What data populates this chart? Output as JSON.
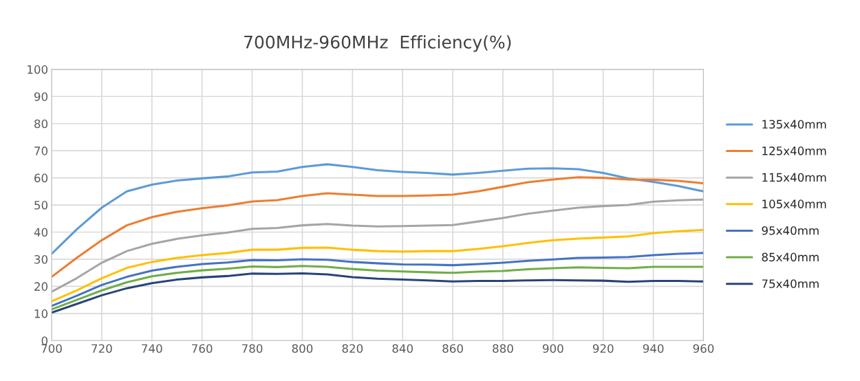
{
  "chart_data": {
    "type": "line",
    "title": "700MHz-960MHz  Efficiency(%)",
    "x": [
      700,
      710,
      720,
      730,
      740,
      750,
      760,
      770,
      780,
      790,
      800,
      810,
      820,
      830,
      840,
      850,
      860,
      870,
      880,
      890,
      900,
      910,
      920,
      930,
      940,
      950,
      960
    ],
    "series": [
      {
        "name": "135x40mm",
        "color": "#5b9bd5",
        "values": [
          32,
          41,
          49,
          55,
          57.5,
          59,
          59.8,
          60.5,
          62,
          62.3,
          64,
          65,
          64,
          62.8,
          62.2,
          61.8,
          61.2,
          61.8,
          62.6,
          63.4,
          63.5,
          63.2,
          61.8,
          59.8,
          58.5,
          57,
          55
        ]
      },
      {
        "name": "125x40mm",
        "color": "#ed7d31",
        "values": [
          23.5,
          30.5,
          37,
          42.5,
          45.5,
          47.5,
          48.8,
          49.8,
          51.3,
          51.8,
          53.3,
          54.3,
          53.8,
          53.3,
          53.3,
          53.5,
          53.8,
          55,
          56.7,
          58.4,
          59.4,
          60.2,
          60,
          59.4,
          59.3,
          58.9,
          58
        ]
      },
      {
        "name": "115x40mm",
        "color": "#a5a5a5",
        "values": [
          18,
          23,
          28.7,
          33,
          35.7,
          37.5,
          38.8,
          39.8,
          41.2,
          41.5,
          42.5,
          43,
          42.4,
          42.1,
          42.2,
          42.4,
          42.6,
          43.9,
          45.2,
          46.8,
          47.9,
          49,
          49.6,
          50,
          51.2,
          51.7,
          52
        ]
      },
      {
        "name": "105x40mm",
        "color": "#ffc000",
        "values": [
          14.5,
          18.5,
          23,
          26.8,
          29,
          30.5,
          31.5,
          32.3,
          33.5,
          33.5,
          34.2,
          34.3,
          33.5,
          33,
          32.8,
          33,
          33,
          33.8,
          34.8,
          36,
          37,
          37.6,
          38,
          38.4,
          39.6,
          40.3,
          40.8
        ]
      },
      {
        "name": "95x40mm",
        "color": "#4472c4",
        "values": [
          12.8,
          16.5,
          20.5,
          23.5,
          25.8,
          27.2,
          28.2,
          28.8,
          29.7,
          29.6,
          30,
          29.8,
          29,
          28.5,
          28.1,
          28,
          27.8,
          28.2,
          28.7,
          29.4,
          29.9,
          30.5,
          30.6,
          30.8,
          31.5,
          32,
          32.3
        ]
      },
      {
        "name": "85x40mm",
        "color": "#70ad47",
        "values": [
          11.5,
          15,
          18.5,
          21.5,
          23.7,
          25,
          25.9,
          26.5,
          27.3,
          27.1,
          27.5,
          27.2,
          26.4,
          25.8,
          25.5,
          25.2,
          25,
          25.4,
          25.7,
          26.3,
          26.7,
          27,
          26.8,
          26.7,
          27.2,
          27.2,
          27.2
        ]
      },
      {
        "name": "75x40mm",
        "color": "#264478",
        "values": [
          10.3,
          13.5,
          16.7,
          19.3,
          21.2,
          22.5,
          23.3,
          23.8,
          24.7,
          24.6,
          24.8,
          24.4,
          23.4,
          22.8,
          22.5,
          22.2,
          21.8,
          22,
          22,
          22.2,
          22.3,
          22.2,
          22.1,
          21.7,
          22,
          22,
          21.8
        ]
      }
    ],
    "xlim": [
      700,
      960
    ],
    "xticks": [
      700,
      720,
      740,
      760,
      780,
      800,
      820,
      840,
      860,
      880,
      900,
      920,
      940,
      960
    ],
    "ylim": [
      0,
      100
    ],
    "yticks": [
      0,
      10,
      20,
      30,
      40,
      50,
      60,
      70,
      80,
      90,
      100
    ],
    "grid": true,
    "legend": "right",
    "marker": "none",
    "line_style": "solid"
  }
}
